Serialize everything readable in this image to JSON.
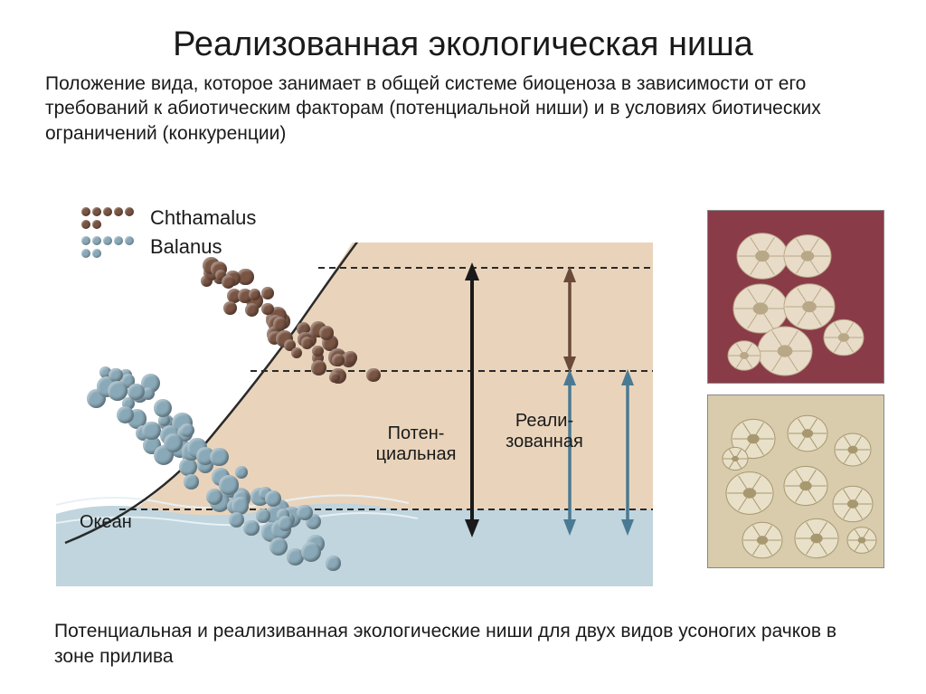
{
  "title": "Реализованная экологическая ниша",
  "subtitle": "Положение вида, которое занимает в общей системе биоценоза в зависимости от его требований к абиотическим факторам (потенциальной ниши) и в условиях биотических ограничений (конкуренции)",
  "legend": {
    "species1": {
      "label": "Chthamalus",
      "color": "#7a5544"
    },
    "species2": {
      "label": "Balanus",
      "color": "#8aa9b8"
    }
  },
  "diagram": {
    "sand_color": "#e9d4bb",
    "water_color": "#c0d5dd",
    "wave_stroke": "#e8f0f4",
    "rock_outline": "#2a2a2a",
    "tide_line_color": "#2a2a2a",
    "ocean_label": "Океан",
    "potential_label": "Потен-\nциальная",
    "realized_label": "Реали-\nзованная",
    "arrows": {
      "potential_color": "#1a1a1a",
      "realized_chthamalus_color": "#6b4a3a",
      "realized_balanus_color": "#4a7a93"
    },
    "tide_lines_y": [
      28,
      142,
      295
    ],
    "cluster_brown_count": 45,
    "cluster_blue_count": 70
  },
  "caption": "Потенциальная и реализиванная экологические ниши для двух видов усоногих рачков в зоне прилива",
  "thumbnails": {
    "top": {
      "bg": "#8a3b48",
      "barnacle_fill": "#e8dcc8",
      "barnacle_shadow": "#b8a888"
    },
    "bottom": {
      "bg": "#d8ccac",
      "barnacle_fill": "#e8e0c8",
      "barnacle_shadow": "#a89870"
    }
  }
}
